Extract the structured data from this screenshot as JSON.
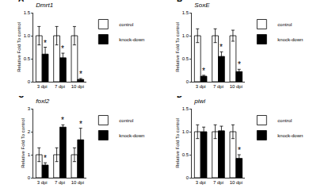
{
  "chart_data": [
    {
      "type": "bar",
      "panel": "A",
      "title": "Dmrt1",
      "y_label": "Relative Fold To control",
      "categories": [
        "3 dpi",
        "7 dpi",
        "10 dpi"
      ],
      "series": [
        {
          "name": "control",
          "color": "#ffffff",
          "values": [
            1,
            1,
            1
          ],
          "errors": [
            0.2,
            0.2,
            0.2
          ]
        },
        {
          "name": "knock-down",
          "color": "#000000",
          "values": [
            0.6,
            0.52,
            0.05
          ],
          "errors": [
            0.15,
            0.1,
            0.02
          ]
        }
      ],
      "annotations": [
        {
          "x": "3 dpi",
          "series": "knock-down",
          "text": "*"
        },
        {
          "x": "7 dpi",
          "series": "knock-down",
          "text": "*"
        },
        {
          "x": "10 dpi",
          "series": "knock-down",
          "text": "*"
        }
      ],
      "ylim": [
        0,
        1.5
      ],
      "yticks": [
        0,
        0.5,
        {
          "value": 1,
          "label": "1.0"
        },
        1.5
      ],
      "grid": false,
      "legend": "right"
    },
    {
      "type": "bar",
      "panel": "B",
      "title": "SoxE",
      "y_label": "Relative Fold To control",
      "categories": [
        "3 dpi",
        "7 dpi",
        "10 dpi"
      ],
      "series": [
        {
          "name": "control",
          "color": "#ffffff",
          "values": [
            1,
            1,
            1
          ],
          "errors": [
            0.15,
            0.15,
            0.12
          ]
        },
        {
          "name": "knock-down",
          "color": "#000000",
          "values": [
            0.12,
            0.55,
            0.22
          ],
          "errors": [
            0.02,
            0.1,
            0.05
          ]
        }
      ],
      "annotations": [
        {
          "x": "3 dpi",
          "series": "knock-down",
          "text": "*"
        },
        {
          "x": "7 dpi",
          "series": "knock-down",
          "text": "*"
        },
        {
          "x": "10 dpi",
          "series": "knock-down",
          "text": "*"
        }
      ],
      "ylim": [
        0,
        1.5
      ],
      "yticks": [
        0,
        0.5,
        {
          "value": 1,
          "label": "1.0"
        },
        1.5
      ],
      "grid": false,
      "legend": "right"
    },
    {
      "type": "bar",
      "panel": "C",
      "title": "foxl2",
      "y_label": "Relative Fold To control",
      "categories": [
        "3 dpi",
        "7 dpi",
        "10 dpi"
      ],
      "series": [
        {
          "name": "control",
          "color": "#ffffff",
          "values": [
            1,
            1,
            1
          ],
          "errors": [
            0.3,
            0.3,
            0.3
          ]
        },
        {
          "name": "knock-down",
          "color": "#000000",
          "values": [
            0.55,
            2.2,
            1.65
          ],
          "errors": [
            0.1,
            0.1,
            0.5
          ]
        }
      ],
      "annotations": [
        {
          "x": "3 dpi",
          "series": "knock-down",
          "text": "*"
        },
        {
          "x": "7 dpi",
          "series": "knock-down",
          "text": "*"
        },
        {
          "x": "10 dpi",
          "series": "knock-down",
          "text": "*"
        }
      ],
      "ylim": [
        0,
        3
      ],
      "yticks": [
        0,
        1,
        2,
        3
      ],
      "grid": false,
      "legend": "right"
    },
    {
      "type": "bar",
      "panel": "D",
      "title": "piwi",
      "y_label": "Relative Fold To control",
      "categories": [
        "3 dpi",
        "7 dpi",
        "10 dpi"
      ],
      "series": [
        {
          "name": "control",
          "color": "#ffffff",
          "values": [
            1,
            1,
            1
          ],
          "errors": [
            0.15,
            0.15,
            0.15
          ]
        },
        {
          "name": "knock-down",
          "color": "#000000",
          "values": [
            1.0,
            1.02,
            0.42
          ],
          "errors": [
            0.1,
            0.1,
            0.08
          ]
        }
      ],
      "annotations": [
        {
          "x": "10 dpi",
          "series": "knock-down",
          "text": "*"
        }
      ],
      "ylim": [
        0,
        1.5
      ],
      "yticks": [
        0,
        0.5,
        {
          "value": 1,
          "label": "1.0"
        },
        1.5
      ],
      "grid": false,
      "legend": "right"
    }
  ]
}
